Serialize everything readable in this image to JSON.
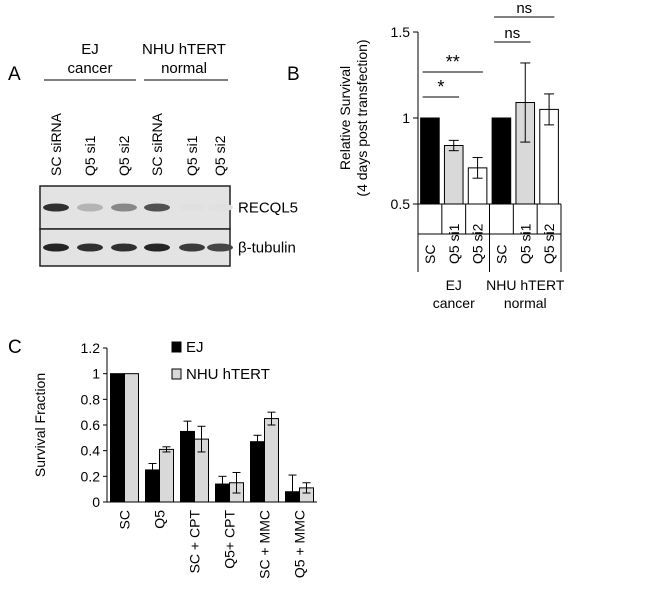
{
  "panels": {
    "A": {
      "label": "A",
      "groups": [
        "EJ cancer",
        "NHU hTERT normal"
      ],
      "group_lines": [
        [
          "EJ",
          "cancer"
        ],
        [
          "NHU hTERT",
          "normal"
        ]
      ],
      "lanes": [
        "SC siRNA",
        "Q5 si1",
        "Q5 si2",
        "SC siRNA",
        "Q5 si1",
        "Q5 si2"
      ],
      "blots": [
        {
          "name": "RECQL5",
          "band_intensity": [
            0.85,
            0.25,
            0.45,
            0.7,
            0.05,
            0.05
          ]
        },
        {
          "name": "β-tubulin",
          "band_intensity": [
            0.9,
            0.85,
            0.85,
            0.9,
            0.8,
            0.75
          ]
        }
      ]
    },
    "B": {
      "label": "B"
    },
    "C": {
      "label": "C"
    }
  },
  "chart_data": [
    {
      "panel": "B",
      "type": "bar",
      "ylabel_lines": [
        "Relative Survival",
        "(4 days post transfection)"
      ],
      "ylim": [
        0.5,
        1.5
      ],
      "yticks": [
        0.5,
        1,
        1.5
      ],
      "ytick_labels": [
        "0.5",
        "1",
        "1.5"
      ],
      "categories": [
        "SC",
        "Q5 si1",
        "Q5 si2",
        "SC",
        "Q5 si1",
        "Q5 si2"
      ],
      "groups": [
        {
          "lines": [
            "EJ",
            "cancer"
          ],
          "start": 0,
          "end": 2
        },
        {
          "lines": [
            "NHU hTERT",
            "normal"
          ],
          "start": 3,
          "end": 5
        }
      ],
      "values": [
        1.0,
        0.84,
        0.71,
        1.0,
        1.09,
        1.05
      ],
      "errors": [
        0,
        0.03,
        0.06,
        0,
        0.23,
        0.09
      ],
      "colors": [
        "#000000",
        "#d9d9d9",
        "#ffffff",
        "#000000",
        "#d9d9d9",
        "#ffffff"
      ],
      "significance": [
        {
          "from": 0,
          "to": 1,
          "label": "*"
        },
        {
          "from": 0,
          "to": 2,
          "label": "**"
        },
        {
          "from": 3,
          "to": 4,
          "label": "ns"
        },
        {
          "from": 3,
          "to": 5,
          "label": "ns"
        }
      ]
    },
    {
      "panel": "C",
      "type": "bar",
      "ylabel": "Survival Fraction",
      "ylim": [
        0,
        1.2
      ],
      "yticks": [
        0,
        0.2,
        0.4,
        0.6,
        0.8,
        1,
        1.2
      ],
      "ytick_labels": [
        "0",
        "0.2",
        "0.4",
        "0.6",
        "0.8",
        "1",
        "1.2"
      ],
      "categories": [
        "SC",
        "Q5",
        "SC + CPT",
        "Q5+ CPT",
        "SC + MMC",
        "Q5 + MMC"
      ],
      "series": [
        {
          "name": "EJ",
          "color": "#000000",
          "values": [
            1.0,
            0.25,
            0.55,
            0.14,
            0.47,
            0.08
          ],
          "errors": [
            0,
            0.05,
            0.08,
            0.06,
            0.05,
            0.13
          ]
        },
        {
          "name": "NHU hTERT",
          "color": "#d9d9d9",
          "values": [
            1.0,
            0.41,
            0.49,
            0.15,
            0.65,
            0.11
          ],
          "errors": [
            0,
            0.02,
            0.1,
            0.08,
            0.05,
            0.04
          ]
        }
      ],
      "legend": "top-right"
    }
  ]
}
